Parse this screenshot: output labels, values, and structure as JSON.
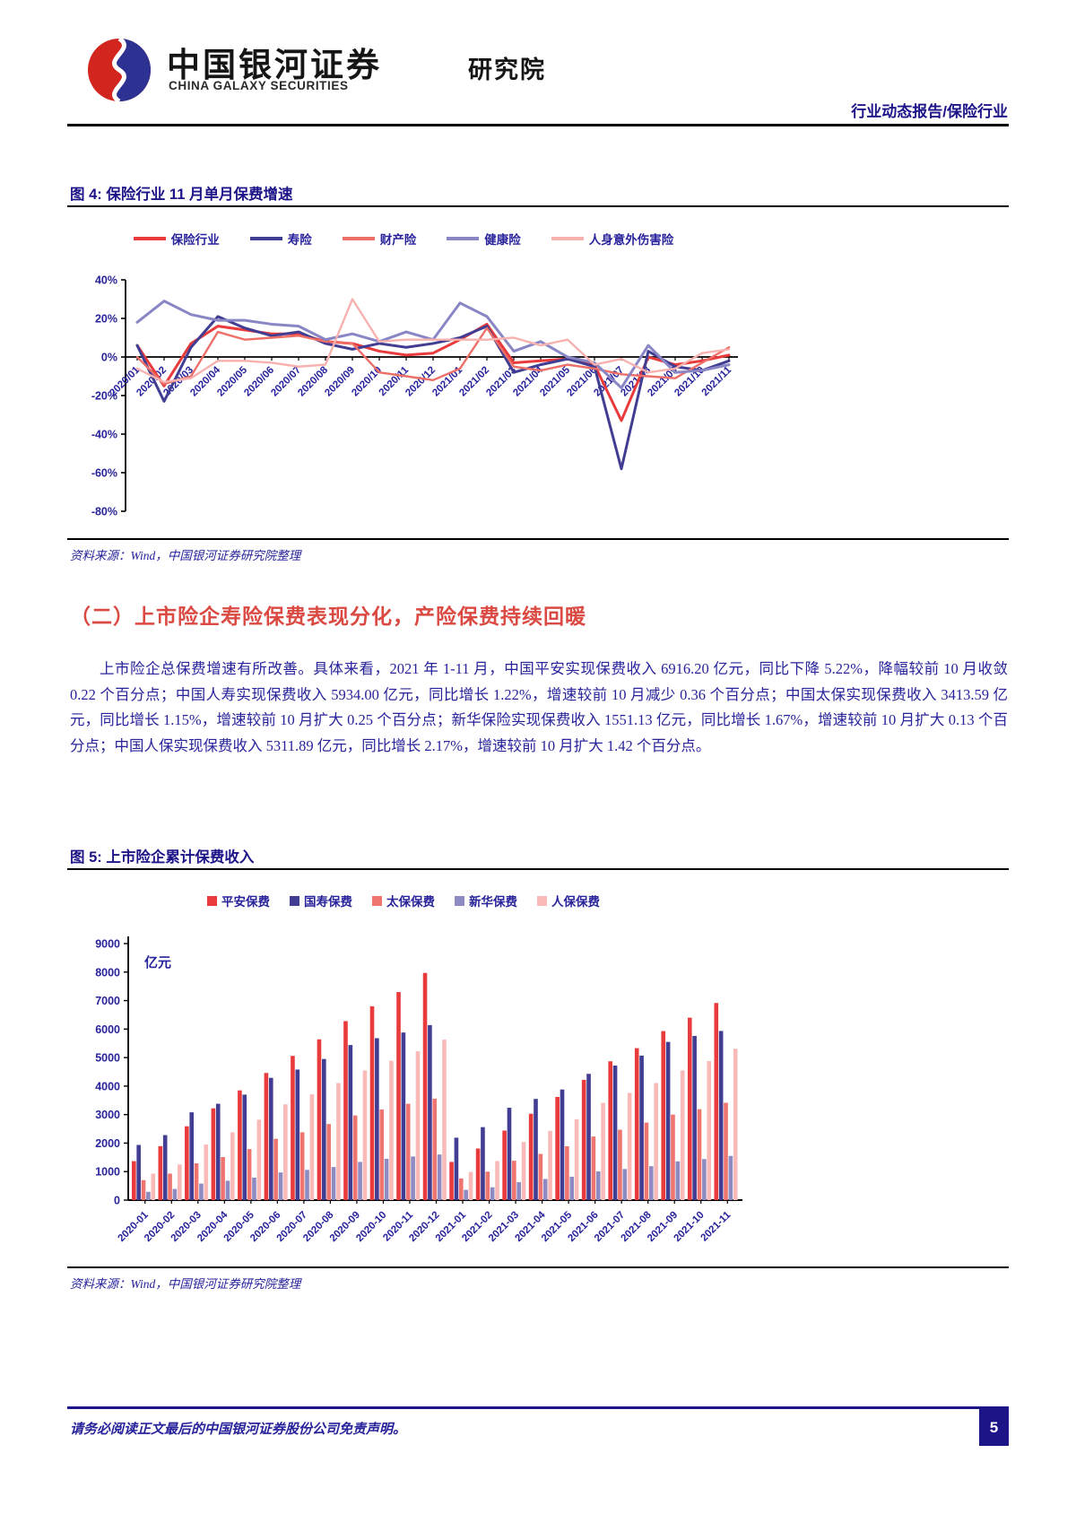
{
  "header": {
    "brand_cn": "中国银河证券",
    "brand_en": "CHINA GALAXY SECURITIES",
    "institute": "研究院",
    "report_type": "行业动态报告/保险行业"
  },
  "fig4": {
    "caption": "图 4: 保险行业 11 月单月保费增速",
    "source": "资料来源：Wind，中国银河证券研究院整理"
  },
  "section": {
    "heading": "（二）上市险企寿险保费表现分化，产险保费持续回暖",
    "paragraph": "上市险企总保费增速有所改善。具体来看，2021 年 1-11 月，中国平安实现保费收入 6916.20 亿元，同比下降 5.22%，降幅较前 10 月收敛 0.22 个百分点；中国人寿实现保费收入 5934.00 亿元，同比增长 1.22%，增速较前 10 月减少 0.36 个百分点；中国太保实现保费收入 3413.59 亿元，同比增长 1.15%，增速较前 10 月扩大 0.25 个百分点；新华保险实现保费收入 1551.13 亿元，同比增长 1.67%，增速较前 10 月扩大 0.13 个百分点；中国人保实现保费收入 5311.89 亿元，同比增长 2.17%，增速较前 10 月扩大 1.42 个百分点。"
  },
  "fig5": {
    "caption": "图 5: 上市险企累计保费收入",
    "source": "资料来源：Wind，中国银河证券研究院整理"
  },
  "footer": {
    "disclaimer": "请务必阅读正文最后的中国银河证券股份公司免责声明。",
    "page_number": "5"
  },
  "chart_data": [
    {
      "type": "line",
      "title": "保险行业11月单月保费增速",
      "x": [
        "2020/01",
        "2020/02",
        "2020/03",
        "2020/04",
        "2020/05",
        "2020/06",
        "2020/07",
        "2020/08",
        "2020/09",
        "2020/10",
        "2020/11",
        "2020/12",
        "2021/01",
        "2021/02",
        "2021/03",
        "2021/04",
        "2021/05",
        "2021/06",
        "2021/07",
        "2021/08",
        "2021/09",
        "2021/10",
        "2021/11"
      ],
      "ylim": [
        -80,
        40
      ],
      "ytick_step": 20,
      "ylabel_suffix": "%",
      "legend_position": "top",
      "grid": false,
      "series": [
        {
          "name": "保险行业",
          "color": "#e93a3c",
          "width": 3,
          "values": [
            6,
            -15,
            7,
            16,
            14,
            12,
            12,
            8,
            7,
            3,
            1,
            2,
            9,
            17,
            -3,
            -2,
            -1,
            -4,
            -33,
            0,
            -4,
            -2,
            1
          ]
        },
        {
          "name": "寿险",
          "color": "#413d92",
          "width": 3,
          "values": [
            6,
            -23,
            5,
            21,
            15,
            11,
            13,
            7,
            4,
            7,
            5,
            7,
            10,
            16,
            -8,
            -4,
            -1,
            -5,
            -58,
            3,
            -5,
            -7,
            -2
          ]
        },
        {
          "name": "财产险",
          "color": "#ee6f68",
          "width": 2.4,
          "values": [
            0,
            -14,
            -10,
            13,
            9,
            10,
            11,
            8,
            7,
            -8,
            -10,
            -12,
            -6,
            15,
            -5,
            -7,
            -4,
            -6,
            -9,
            -10,
            -11,
            -3,
            5
          ]
        },
        {
          "name": "健康险",
          "color": "#8886c4",
          "width": 3,
          "values": [
            18,
            29,
            22,
            19,
            19,
            17,
            16,
            9,
            12,
            8,
            13,
            9,
            28,
            21,
            3,
            8,
            0,
            -3,
            -16,
            6,
            -8,
            -7,
            -4
          ]
        },
        {
          "name": "人身意外伤害险",
          "color": "#f7b2af",
          "width": 2.4,
          "values": [
            -6,
            -13,
            -11,
            -2,
            -2,
            -3,
            -5,
            -4,
            30,
            8,
            9,
            9,
            9,
            9,
            10,
            6,
            9,
            -4,
            -1,
            -8,
            -6,
            2,
            4
          ]
        }
      ]
    },
    {
      "type": "bar",
      "title": "上市险企累计保费收入",
      "unit_label": "亿元",
      "x": [
        "2020-01",
        "2020-02",
        "2020-03",
        "2020-04",
        "2020-05",
        "2020-06",
        "2020-07",
        "2020-08",
        "2020-09",
        "2020-10",
        "2020-11",
        "2020-12",
        "2021-01",
        "2021-02",
        "2021-03",
        "2021-04",
        "2021-05",
        "2021-06",
        "2021-07",
        "2021-08",
        "2021-09",
        "2021-10",
        "2021-11"
      ],
      "ylim": [
        0,
        9000
      ],
      "ytick_step": 1000,
      "legend_position": "top",
      "grid": false,
      "series": [
        {
          "name": "平安保费",
          "color": "#e93a3c",
          "values": [
            1366,
            1893,
            2590,
            3220,
            3850,
            4460,
            5060,
            5640,
            6280,
            6800,
            7300,
            7970,
            1340,
            1810,
            2440,
            3030,
            3620,
            4220,
            4870,
            5330,
            5930,
            6400,
            6916
          ]
        },
        {
          "name": "国寿保费",
          "color": "#413d92",
          "values": [
            1935,
            2280,
            3080,
            3380,
            3700,
            4290,
            4580,
            4950,
            5440,
            5680,
            5880,
            6140,
            2190,
            2560,
            3240,
            3550,
            3880,
            4430,
            4720,
            5070,
            5550,
            5760,
            5934
          ]
        },
        {
          "name": "太保保费",
          "color": "#ee7570",
          "values": [
            700,
            930,
            1290,
            1510,
            1790,
            2150,
            2380,
            2670,
            2970,
            3180,
            3380,
            3560,
            760,
            1000,
            1380,
            1620,
            1890,
            2230,
            2470,
            2720,
            3000,
            3190,
            3414
          ]
        },
        {
          "name": "新华保费",
          "color": "#8d8bc2",
          "values": [
            290,
            390,
            580,
            680,
            790,
            970,
            1060,
            1160,
            1340,
            1450,
            1530,
            1600,
            360,
            450,
            630,
            740,
            820,
            1010,
            1090,
            1190,
            1360,
            1440,
            1551
          ]
        },
        {
          "name": "人保保费",
          "color": "#f9bab8",
          "values": [
            930,
            1250,
            1950,
            2380,
            2820,
            3360,
            3710,
            4110,
            4550,
            4890,
            5220,
            5630,
            990,
            1370,
            2040,
            2430,
            2840,
            3410,
            3760,
            4110,
            4550,
            4880,
            5312
          ]
        }
      ]
    }
  ]
}
